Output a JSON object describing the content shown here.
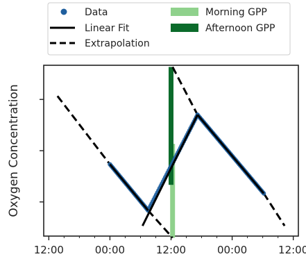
{
  "chart_data": {
    "type": "line",
    "title": "",
    "xlabel": "",
    "ylabel": "Oxygen Concentration",
    "x_unit": "hours",
    "xlim": [
      -1,
      49
    ],
    "ylim": [
      0,
      1
    ],
    "x_ticks": [
      {
        "value": 0,
        "label": "12:00"
      },
      {
        "value": 12,
        "label": "00:00"
      },
      {
        "value": 24,
        "label": "12:00"
      },
      {
        "value": 36,
        "label": "00:00"
      },
      {
        "value": 48,
        "label": "12:00"
      }
    ],
    "y_ticks": [
      0.2,
      0.5,
      0.8
    ],
    "y_tick_labels_shown": false,
    "grid": false,
    "legend": {
      "placement": "top",
      "columns": 2,
      "entries": [
        {
          "name": "Data",
          "kind": "marker",
          "color": "#1f5f9e"
        },
        {
          "name": "Morning GPP",
          "kind": "patch",
          "color": "#8fd18c"
        },
        {
          "name": "Linear Fit",
          "kind": "solid-line",
          "color": "#000000"
        },
        {
          "name": "Afternoon GPP",
          "kind": "patch",
          "color": "#0b6b2b"
        },
        {
          "name": "Extrapolation",
          "kind": "dashed-line",
          "color": "#000000"
        }
      ]
    },
    "series": [
      {
        "name": "Data",
        "kind": "scatter",
        "color": "#1f5f9e",
        "segments": [
          {
            "x_start": 12,
            "y_start": 0.42,
            "x_end": 19.5,
            "y_end": 0.15,
            "count": 36
          },
          {
            "x_start": 19.5,
            "y_start": 0.15,
            "x_end": 29.2,
            "y_end": 0.71,
            "count": 44
          },
          {
            "x_start": 29.2,
            "y_start": 0.71,
            "x_end": 42.2,
            "y_end": 0.25,
            "count": 60
          }
        ]
      },
      {
        "name": "Linear Fit",
        "kind": "solid-line",
        "color": "#000000",
        "segments": [
          {
            "points": [
              [
                12,
                0.42
              ],
              [
                19.5,
                0.15
              ]
            ]
          },
          {
            "points": [
              [
                18.4,
                0.06
              ],
              [
                29.2,
                0.71
              ]
            ]
          },
          {
            "points": [
              [
                29.2,
                0.71
              ],
              [
                42.2,
                0.25
              ]
            ]
          }
        ]
      },
      {
        "name": "Extrapolation",
        "kind": "dashed-line",
        "color": "#000000",
        "segments": [
          {
            "points": [
              [
                1.7,
                0.82
              ],
              [
                12,
                0.42
              ]
            ]
          },
          {
            "points": [
              [
                19.5,
                0.15
              ],
              [
                24.3,
                -0.01
              ]
            ]
          },
          {
            "points": [
              [
                24.3,
                0.99
              ],
              [
                29.2,
                0.71
              ]
            ]
          },
          {
            "points": [
              [
                42.2,
                0.25
              ],
              [
                46.3,
                0.06
              ]
            ]
          }
        ]
      }
    ],
    "bars": [
      {
        "name": "Morning GPP",
        "x": 24.3,
        "y_from": 0.54,
        "y_to": -0.01,
        "color": "#8fd18c"
      },
      {
        "name": "Afternoon GPP",
        "x": 24.0,
        "y_from": 0.99,
        "y_to": 0.3,
        "color": "#0b6b2b"
      }
    ]
  }
}
